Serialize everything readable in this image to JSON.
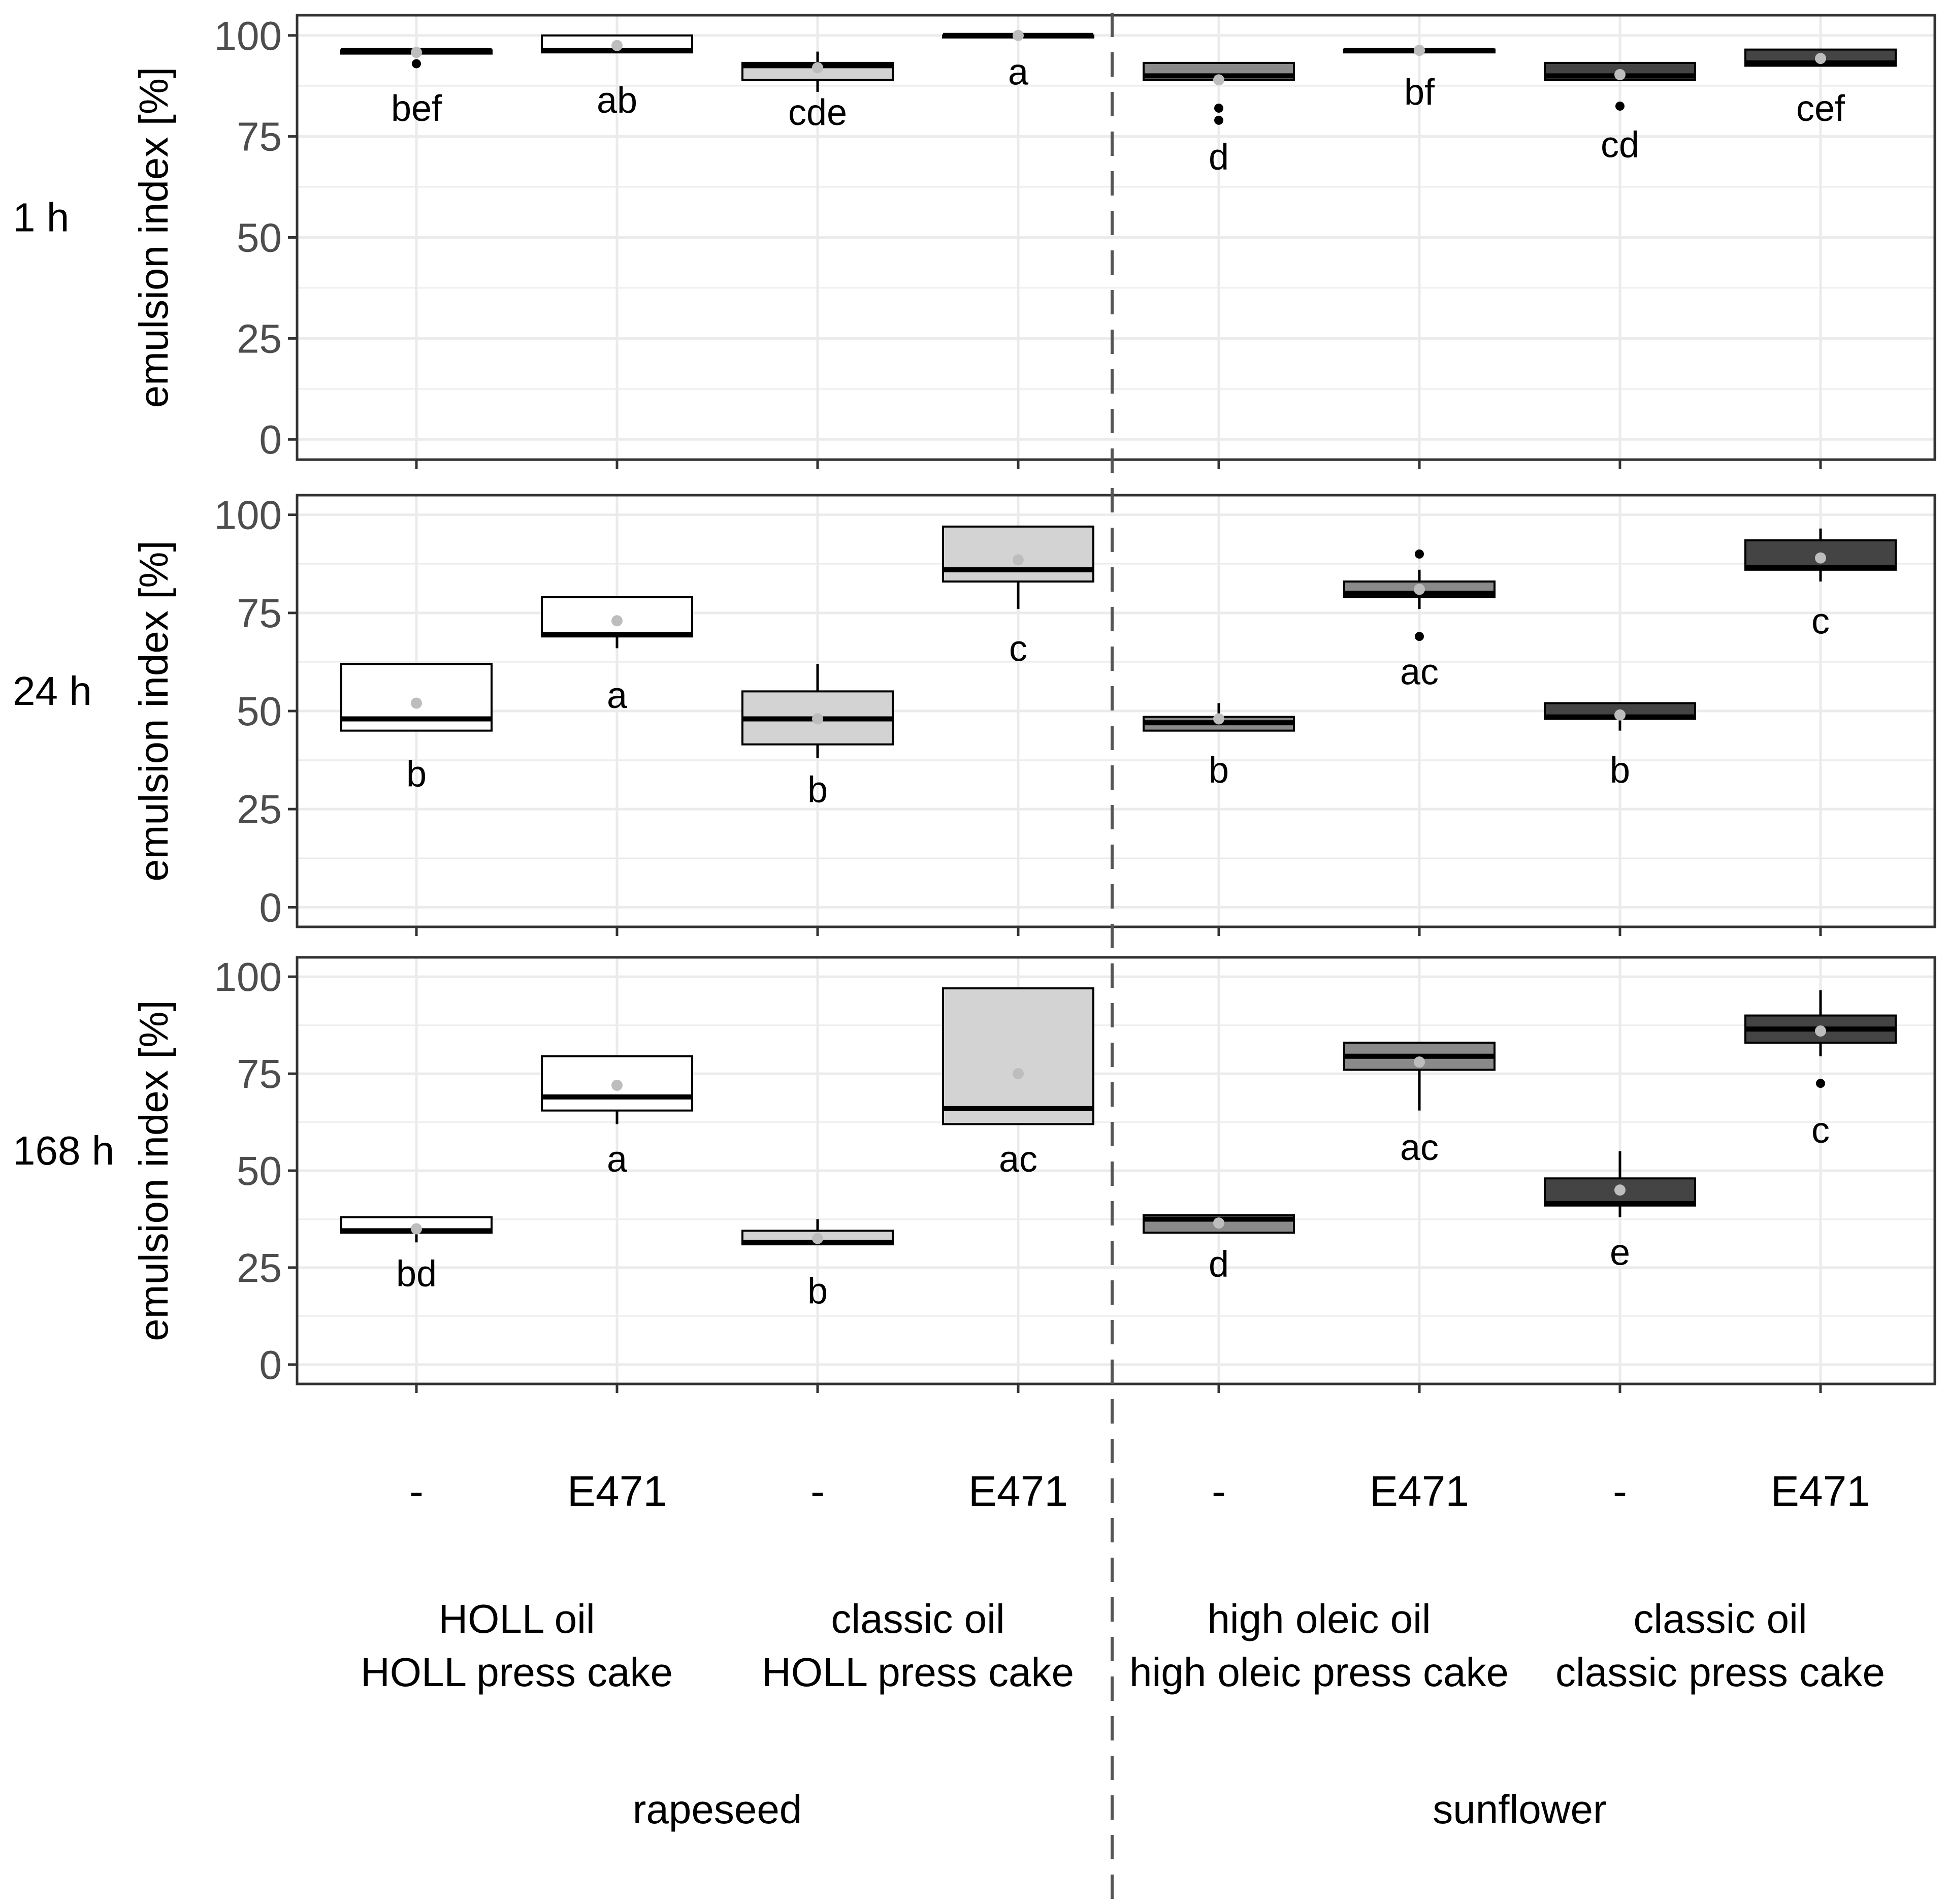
{
  "chart_data": {
    "type": "boxplot",
    "y_axis_label": "emulsion index [%]",
    "y_ticks": [
      "0",
      "25",
      "50",
      "75",
      "100"
    ],
    "ylim": [
      -5,
      105
    ],
    "groups": [
      {
        "label": "rapeseed",
        "subgroups": [
          0,
          1
        ]
      },
      {
        "label": "sunflower",
        "subgroups": [
          2,
          3
        ]
      }
    ],
    "subgroups": [
      {
        "line1": "HOLL oil",
        "line2": "HOLL press cake"
      },
      {
        "line1": "classic oil",
        "line2": "HOLL press cake"
      },
      {
        "line1": "high oleic oil",
        "line2": "high oleic press cake"
      },
      {
        "line1": "classic oil",
        "line2": "classic press cake"
      }
    ],
    "categories": [
      "-",
      "E471",
      "-",
      "E471",
      "-",
      "E471",
      "-",
      "E471"
    ],
    "fill_colors": [
      "#ffffff",
      "#ffffff",
      "#d3d3d3",
      "#d3d3d3",
      "#8a8a8a",
      "#8a8a8a",
      "#444444",
      "#444444"
    ],
    "colors": {
      "mean_point": "#bdbdbd",
      "panel_border": "#333333",
      "grid": "#ebebeb",
      "divider": "#555555"
    },
    "panels": [
      {
        "label": "1 h",
        "boxes": [
          {
            "q1": 95.5,
            "median": 96.3,
            "q3": 96.3,
            "lo": 95.5,
            "hi": 96.8,
            "mean": 95.8,
            "outliers": [
              93
            ],
            "letter": "bef",
            "letter_y": 82
          },
          {
            "q1": 95.8,
            "median": 96.3,
            "q3": 100,
            "lo": 95.8,
            "hi": 100,
            "mean": 97.5,
            "outliers": [],
            "letter": "ab",
            "letter_y": 84
          },
          {
            "q1": 89,
            "median": 92.5,
            "q3": 93.2,
            "lo": 86,
            "hi": 96,
            "mean": 92,
            "outliers": [],
            "letter": "cde",
            "letter_y": 81
          },
          {
            "q1": 99.8,
            "median": 100,
            "q3": 100,
            "lo": 99.8,
            "hi": 100,
            "mean": 100,
            "outliers": [],
            "letter": "a",
            "letter_y": 91
          },
          {
            "q1": 89,
            "median": 90,
            "q3": 93.2,
            "lo": 88,
            "hi": 93.2,
            "mean": 89,
            "outliers": [
              82,
              79
            ],
            "letter": "d",
            "letter_y": 70
          },
          {
            "q1": 95.8,
            "median": 96.3,
            "q3": 96.5,
            "lo": 95.8,
            "hi": 96.5,
            "mean": 96.3,
            "outliers": [],
            "letter": "bf",
            "letter_y": 86
          },
          {
            "q1": 89,
            "median": 90,
            "q3": 93.2,
            "lo": 89,
            "hi": 93.2,
            "mean": 90.3,
            "outliers": [
              82.5
            ],
            "letter": "cd",
            "letter_y": 73
          },
          {
            "q1": 92.5,
            "median": 93.2,
            "q3": 96.5,
            "lo": 92.5,
            "hi": 96.5,
            "mean": 94.3,
            "outliers": [],
            "letter": "cef",
            "letter_y": 82
          }
        ]
      },
      {
        "label": "24 h",
        "boxes": [
          {
            "q1": 45,
            "median": 48,
            "q3": 62,
            "lo": 45,
            "hi": 62,
            "mean": 52,
            "outliers": [],
            "letter": "b",
            "letter_y": 34
          },
          {
            "q1": 69,
            "median": 69.5,
            "q3": 79,
            "lo": 66,
            "hi": 79,
            "mean": 73,
            "outliers": [],
            "letter": "a",
            "letter_y": 54
          },
          {
            "q1": 41.5,
            "median": 48,
            "q3": 55,
            "lo": 38,
            "hi": 62,
            "mean": 48,
            "outliers": [],
            "letter": "b",
            "letter_y": 30
          },
          {
            "q1": 83,
            "median": 86,
            "q3": 97,
            "lo": 76,
            "hi": 97,
            "mean": 88.5,
            "outliers": [],
            "letter": "c",
            "letter_y": 66
          },
          {
            "q1": 45,
            "median": 47,
            "q3": 48.5,
            "lo": 45,
            "hi": 52,
            "mean": 48,
            "outliers": [],
            "letter": "b",
            "letter_y": 35
          },
          {
            "q1": 79,
            "median": 80,
            "q3": 83,
            "lo": 76,
            "hi": 86,
            "mean": 81,
            "outliers": [
              90,
              69
            ],
            "letter": "ac",
            "letter_y": 60
          },
          {
            "q1": 48,
            "median": 48.5,
            "q3": 52,
            "lo": 45,
            "hi": 52,
            "mean": 49,
            "outliers": [],
            "letter": "b",
            "letter_y": 35
          },
          {
            "q1": 86,
            "median": 86.5,
            "q3": 93.5,
            "lo": 83,
            "hi": 96.5,
            "mean": 89,
            "outliers": [],
            "letter": "c",
            "letter_y": 73
          }
        ]
      },
      {
        "label": "168 h",
        "boxes": [
          {
            "q1": 34,
            "median": 34.5,
            "q3": 38,
            "lo": 31.5,
            "hi": 38,
            "mean": 35,
            "outliers": [],
            "letter": "bd",
            "letter_y": 23.5
          },
          {
            "q1": 65.5,
            "median": 69,
            "q3": 79.5,
            "lo": 62,
            "hi": 79.5,
            "mean": 72,
            "outliers": [],
            "letter": "a",
            "letter_y": 53
          },
          {
            "q1": 31,
            "median": 31.5,
            "q3": 34.5,
            "lo": 31,
            "hi": 37.5,
            "mean": 32.5,
            "outliers": [],
            "letter": "b",
            "letter_y": 19
          },
          {
            "q1": 62,
            "median": 66,
            "q3": 97,
            "lo": 62,
            "hi": 97,
            "mean": 75,
            "outliers": [],
            "letter": "ac",
            "letter_y": 53
          },
          {
            "q1": 34,
            "median": 37.5,
            "q3": 38.5,
            "lo": 34,
            "hi": 38.5,
            "mean": 36.5,
            "outliers": [],
            "letter": "d",
            "letter_y": 26
          },
          {
            "q1": 76,
            "median": 79.5,
            "q3": 83,
            "lo": 65.5,
            "hi": 83,
            "mean": 78,
            "outliers": [],
            "letter": "ac",
            "letter_y": 56
          },
          {
            "q1": 41,
            "median": 41.5,
            "q3": 48,
            "lo": 38,
            "hi": 55,
            "mean": 45,
            "outliers": [],
            "letter": "e",
            "letter_y": 29
          },
          {
            "q1": 83,
            "median": 86.5,
            "q3": 90,
            "lo": 79.5,
            "hi": 96.5,
            "mean": 86,
            "outliers": [
              72.5
            ],
            "letter": "c",
            "letter_y": 60.5
          }
        ]
      }
    ]
  }
}
